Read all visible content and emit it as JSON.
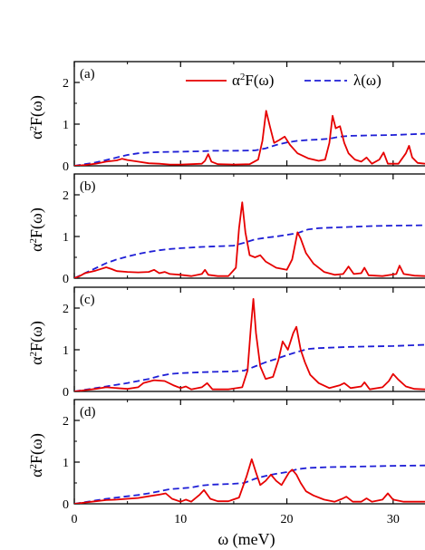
{
  "chart_data": {
    "type": "line",
    "x_unit": "meV",
    "xlabel": "ω (meV)",
    "ylabel_base": "α",
    "ylabel_sup": "2",
    "ylabel_rest": "F(ω)",
    "xlim": [
      0,
      33
    ],
    "ylim": [
      0,
      2.5
    ],
    "xticks": [
      0,
      10,
      20,
      30
    ],
    "yticks": [
      0,
      1,
      2
    ],
    "legend": {
      "placement": "top-right",
      "entries": [
        {
          "base": "α",
          "sup": "2",
          "rest": "F(ω)",
          "color": "#e60000",
          "dash": "solid"
        },
        {
          "base": "λ(ω)",
          "sup": "",
          "rest": "",
          "color": "#1f1fd6",
          "dash": "dashed"
        }
      ]
    },
    "colors": {
      "a2f": "#e60000",
      "lambda": "#1f1fd6"
    },
    "panels": [
      {
        "label": "(a)",
        "a2f": [
          [
            0,
            0
          ],
          [
            1,
            0.02
          ],
          [
            2,
            0.05
          ],
          [
            3,
            0.1
          ],
          [
            4,
            0.13
          ],
          [
            4.5,
            0.17
          ],
          [
            5,
            0.14
          ],
          [
            6,
            0.1
          ],
          [
            7,
            0.06
          ],
          [
            8,
            0.05
          ],
          [
            9,
            0.03
          ],
          [
            10,
            0.03
          ],
          [
            11,
            0.04
          ],
          [
            12,
            0.05
          ],
          [
            12.3,
            0.12
          ],
          [
            12.6,
            0.28
          ],
          [
            12.9,
            0.1
          ],
          [
            13.5,
            0.04
          ],
          [
            15,
            0.03
          ],
          [
            16.5,
            0.04
          ],
          [
            17.3,
            0.15
          ],
          [
            17.7,
            0.6
          ],
          [
            18.05,
            1.32
          ],
          [
            18.4,
            0.95
          ],
          [
            18.8,
            0.55
          ],
          [
            19.3,
            0.62
          ],
          [
            19.8,
            0.7
          ],
          [
            20.3,
            0.5
          ],
          [
            21,
            0.3
          ],
          [
            22,
            0.18
          ],
          [
            23,
            0.12
          ],
          [
            23.6,
            0.15
          ],
          [
            24,
            0.55
          ],
          [
            24.3,
            1.2
          ],
          [
            24.6,
            0.9
          ],
          [
            25,
            0.95
          ],
          [
            25.4,
            0.55
          ],
          [
            25.8,
            0.3
          ],
          [
            26.4,
            0.15
          ],
          [
            27,
            0.1
          ],
          [
            27.5,
            0.2
          ],
          [
            28,
            0.05
          ],
          [
            28.7,
            0.15
          ],
          [
            29.1,
            0.32
          ],
          [
            29.5,
            0.05
          ],
          [
            30.5,
            0.05
          ],
          [
            31.2,
            0.3
          ],
          [
            31.5,
            0.48
          ],
          [
            31.8,
            0.2
          ],
          [
            32.3,
            0.07
          ],
          [
            33,
            0.05
          ]
        ],
        "lambda": [
          [
            0,
            0.0
          ],
          [
            1,
            0.04
          ],
          [
            2,
            0.08
          ],
          [
            3,
            0.14
          ],
          [
            4,
            0.2
          ],
          [
            5,
            0.26
          ],
          [
            6,
            0.3
          ],
          [
            7,
            0.32
          ],
          [
            8,
            0.33
          ],
          [
            10,
            0.34
          ],
          [
            12,
            0.35
          ],
          [
            13,
            0.36
          ],
          [
            15,
            0.36
          ],
          [
            17,
            0.37
          ],
          [
            18,
            0.42
          ],
          [
            19,
            0.5
          ],
          [
            20,
            0.56
          ],
          [
            21,
            0.6
          ],
          [
            22,
            0.62
          ],
          [
            23,
            0.63
          ],
          [
            24,
            0.65
          ],
          [
            25,
            0.7
          ],
          [
            26,
            0.72
          ],
          [
            28,
            0.73
          ],
          [
            30,
            0.74
          ],
          [
            33,
            0.77
          ]
        ]
      },
      {
        "label": "(b)",
        "a2f": [
          [
            0,
            0
          ],
          [
            0.5,
            0.05
          ],
          [
            1,
            0.12
          ],
          [
            2,
            0.18
          ],
          [
            3,
            0.26
          ],
          [
            3.5,
            0.22
          ],
          [
            4,
            0.17
          ],
          [
            5,
            0.15
          ],
          [
            6,
            0.14
          ],
          [
            7,
            0.15
          ],
          [
            7.5,
            0.2
          ],
          [
            8,
            0.12
          ],
          [
            8.5,
            0.15
          ],
          [
            9,
            0.1
          ],
          [
            10,
            0.08
          ],
          [
            11,
            0.05
          ],
          [
            12,
            0.1
          ],
          [
            12.3,
            0.2
          ],
          [
            12.6,
            0.08
          ],
          [
            13.5,
            0.05
          ],
          [
            14.5,
            0.05
          ],
          [
            15.2,
            0.25
          ],
          [
            15.5,
            1.2
          ],
          [
            15.8,
            1.82
          ],
          [
            16.1,
            1.1
          ],
          [
            16.5,
            0.55
          ],
          [
            17,
            0.5
          ],
          [
            17.5,
            0.55
          ],
          [
            18,
            0.4
          ],
          [
            19,
            0.25
          ],
          [
            20,
            0.2
          ],
          [
            20.5,
            0.45
          ],
          [
            21,
            1.1
          ],
          [
            21.3,
            0.95
          ],
          [
            21.8,
            0.6
          ],
          [
            22.5,
            0.35
          ],
          [
            23.5,
            0.15
          ],
          [
            24.5,
            0.08
          ],
          [
            25.3,
            0.1
          ],
          [
            25.8,
            0.28
          ],
          [
            26.3,
            0.1
          ],
          [
            27,
            0.12
          ],
          [
            27.3,
            0.25
          ],
          [
            27.7,
            0.07
          ],
          [
            29,
            0.05
          ],
          [
            30.3,
            0.1
          ],
          [
            30.6,
            0.3
          ],
          [
            31,
            0.1
          ],
          [
            32,
            0.06
          ],
          [
            33,
            0.05
          ]
        ],
        "lambda": [
          [
            0,
            0.0
          ],
          [
            1,
            0.12
          ],
          [
            2,
            0.24
          ],
          [
            3,
            0.36
          ],
          [
            4,
            0.45
          ],
          [
            5,
            0.52
          ],
          [
            6,
            0.58
          ],
          [
            7,
            0.63
          ],
          [
            8,
            0.67
          ],
          [
            9,
            0.7
          ],
          [
            10,
            0.72
          ],
          [
            12,
            0.75
          ],
          [
            14,
            0.77
          ],
          [
            15,
            0.78
          ],
          [
            16,
            0.85
          ],
          [
            17,
            0.93
          ],
          [
            18,
            0.97
          ],
          [
            19,
            1.0
          ],
          [
            20,
            1.04
          ],
          [
            21,
            1.08
          ],
          [
            22,
            1.17
          ],
          [
            23,
            1.2
          ],
          [
            24,
            1.21
          ],
          [
            26,
            1.23
          ],
          [
            28,
            1.25
          ],
          [
            30,
            1.26
          ],
          [
            33,
            1.27
          ]
        ]
      },
      {
        "label": "(c)",
        "a2f": [
          [
            0,
            0
          ],
          [
            1,
            0.03
          ],
          [
            2,
            0.06
          ],
          [
            3,
            0.1
          ],
          [
            4,
            0.08
          ],
          [
            5,
            0.06
          ],
          [
            6,
            0.1
          ],
          [
            6.5,
            0.2
          ],
          [
            7.5,
            0.27
          ],
          [
            8.5,
            0.25
          ],
          [
            9.3,
            0.15
          ],
          [
            10,
            0.08
          ],
          [
            10.5,
            0.12
          ],
          [
            11,
            0.05
          ],
          [
            12,
            0.1
          ],
          [
            12.5,
            0.2
          ],
          [
            13,
            0.05
          ],
          [
            14.5,
            0.05
          ],
          [
            15.8,
            0.1
          ],
          [
            16.3,
            0.5
          ],
          [
            16.6,
            1.5
          ],
          [
            16.85,
            2.22
          ],
          [
            17.1,
            1.4
          ],
          [
            17.5,
            0.6
          ],
          [
            18,
            0.3
          ],
          [
            18.7,
            0.35
          ],
          [
            19.2,
            0.75
          ],
          [
            19.6,
            1.2
          ],
          [
            20.1,
            1.0
          ],
          [
            20.6,
            1.4
          ],
          [
            20.9,
            1.55
          ],
          [
            21.3,
            1.0
          ],
          [
            21.7,
            0.7
          ],
          [
            22.2,
            0.4
          ],
          [
            23,
            0.2
          ],
          [
            24,
            0.08
          ],
          [
            25,
            0.15
          ],
          [
            25.4,
            0.2
          ],
          [
            26,
            0.08
          ],
          [
            27,
            0.12
          ],
          [
            27.3,
            0.22
          ],
          [
            27.8,
            0.05
          ],
          [
            29,
            0.1
          ],
          [
            29.6,
            0.25
          ],
          [
            30,
            0.42
          ],
          [
            30.5,
            0.28
          ],
          [
            31.2,
            0.12
          ],
          [
            32,
            0.06
          ],
          [
            33,
            0.05
          ]
        ],
        "lambda": [
          [
            0,
            0.0
          ],
          [
            1,
            0.04
          ],
          [
            2,
            0.08
          ],
          [
            3,
            0.12
          ],
          [
            4,
            0.16
          ],
          [
            5,
            0.2
          ],
          [
            6,
            0.25
          ],
          [
            7,
            0.3
          ],
          [
            8,
            0.37
          ],
          [
            9,
            0.42
          ],
          [
            10,
            0.44
          ],
          [
            12,
            0.46
          ],
          [
            13,
            0.47
          ],
          [
            15,
            0.48
          ],
          [
            16,
            0.5
          ],
          [
            17,
            0.6
          ],
          [
            18,
            0.7
          ],
          [
            19,
            0.78
          ],
          [
            20,
            0.87
          ],
          [
            21,
            0.95
          ],
          [
            22,
            1.02
          ],
          [
            23,
            1.04
          ],
          [
            24,
            1.05
          ],
          [
            26,
            1.07
          ],
          [
            28,
            1.08
          ],
          [
            30,
            1.09
          ],
          [
            33,
            1.12
          ]
        ]
      },
      {
        "label": "(d)",
        "a2f": [
          [
            0,
            0
          ],
          [
            1,
            0.03
          ],
          [
            2,
            0.06
          ],
          [
            3,
            0.09
          ],
          [
            4,
            0.1
          ],
          [
            5,
            0.12
          ],
          [
            6,
            0.14
          ],
          [
            7,
            0.18
          ],
          [
            8,
            0.22
          ],
          [
            8.6,
            0.25
          ],
          [
            9.2,
            0.12
          ],
          [
            10,
            0.05
          ],
          [
            10.5,
            0.1
          ],
          [
            11,
            0.05
          ],
          [
            11.8,
            0.22
          ],
          [
            12.2,
            0.33
          ],
          [
            12.8,
            0.12
          ],
          [
            13.5,
            0.06
          ],
          [
            14.5,
            0.06
          ],
          [
            15.5,
            0.15
          ],
          [
            16.2,
            0.65
          ],
          [
            16.7,
            1.07
          ],
          [
            17.1,
            0.75
          ],
          [
            17.5,
            0.45
          ],
          [
            18,
            0.55
          ],
          [
            18.5,
            0.7
          ],
          [
            19,
            0.55
          ],
          [
            19.5,
            0.45
          ],
          [
            20.2,
            0.75
          ],
          [
            20.5,
            0.82
          ],
          [
            20.9,
            0.7
          ],
          [
            21.3,
            0.5
          ],
          [
            21.8,
            0.3
          ],
          [
            22.5,
            0.2
          ],
          [
            23.5,
            0.1
          ],
          [
            24.5,
            0.05
          ],
          [
            25.2,
            0.12
          ],
          [
            25.6,
            0.17
          ],
          [
            26.2,
            0.05
          ],
          [
            27,
            0.05
          ],
          [
            27.5,
            0.13
          ],
          [
            28,
            0.05
          ],
          [
            29,
            0.1
          ],
          [
            29.5,
            0.25
          ],
          [
            30,
            0.1
          ],
          [
            31,
            0.05
          ],
          [
            32,
            0.05
          ],
          [
            33,
            0.05
          ]
        ],
        "lambda": [
          [
            0,
            0.0
          ],
          [
            1,
            0.04
          ],
          [
            2,
            0.08
          ],
          [
            3,
            0.12
          ],
          [
            4,
            0.15
          ],
          [
            5,
            0.18
          ],
          [
            6,
            0.21
          ],
          [
            7,
            0.25
          ],
          [
            8,
            0.3
          ],
          [
            9,
            0.35
          ],
          [
            10,
            0.37
          ],
          [
            11,
            0.39
          ],
          [
            12,
            0.44
          ],
          [
            13,
            0.46
          ],
          [
            14,
            0.47
          ],
          [
            15,
            0.48
          ],
          [
            16,
            0.5
          ],
          [
            17,
            0.6
          ],
          [
            18,
            0.67
          ],
          [
            19,
            0.72
          ],
          [
            20,
            0.76
          ],
          [
            21,
            0.83
          ],
          [
            22,
            0.86
          ],
          [
            23,
            0.87
          ],
          [
            24,
            0.88
          ],
          [
            26,
            0.89
          ],
          [
            28,
            0.9
          ],
          [
            30,
            0.91
          ],
          [
            33,
            0.92
          ]
        ]
      }
    ]
  }
}
